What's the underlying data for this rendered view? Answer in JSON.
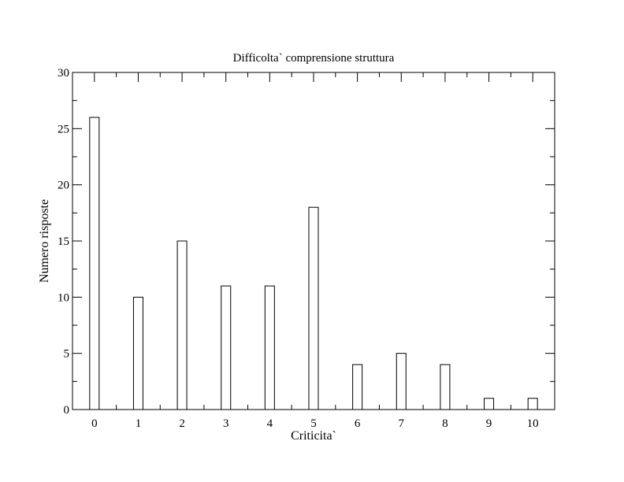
{
  "chart_data": {
    "type": "bar",
    "title": "Difficolta` comprensione struttura",
    "xlabel": "Criticita`",
    "ylabel": "Numero risposte",
    "categories": [
      "0",
      "1",
      "2",
      "3",
      "4",
      "5",
      "6",
      "7",
      "8",
      "9",
      "10"
    ],
    "values": [
      26,
      10,
      15,
      11,
      11,
      18,
      4,
      5,
      4,
      1,
      1
    ],
    "xlim": [
      -0.5,
      10.5
    ],
    "ylim": [
      0,
      30
    ],
    "yticks": [
      0,
      5,
      10,
      15,
      20,
      25,
      30
    ],
    "grid": false,
    "legend": "none",
    "bar_color": "#ffffff",
    "edge_color": "#000000"
  }
}
